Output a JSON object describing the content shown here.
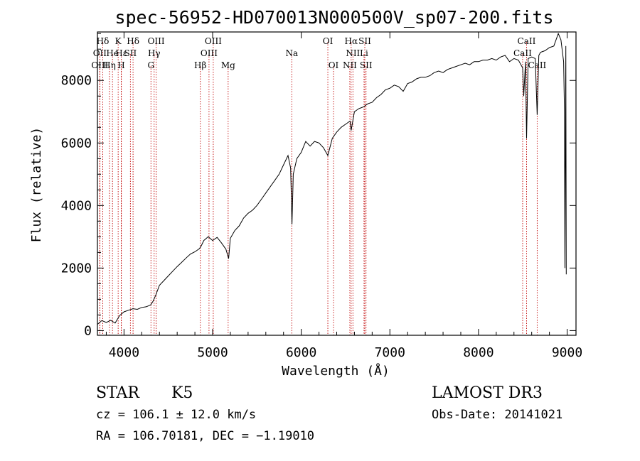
{
  "chart_data": {
    "type": "line",
    "title": "spec-56952-HD070013N000500V_sp07-200.fits",
    "xlabel": "Wavelength (Å)",
    "ylabel": "Flux (relative)",
    "xlim": [
      3700,
      9100
    ],
    "ylim": [
      -150,
      9550
    ],
    "xticks": [
      4000,
      5000,
      6000,
      7000,
      8000,
      9000
    ],
    "xtick_labels": [
      "4000",
      "5000",
      "6000",
      "7000",
      "8000",
      "9000"
    ],
    "yticks": [
      0,
      2000,
      4000,
      6000,
      8000
    ],
    "ytick_labels": [
      "0",
      "2000",
      "4000",
      "6000",
      "8000"
    ],
    "series": [
      {
        "name": "flux",
        "color": "#000000",
        "points": [
          [
            3700,
            200
          ],
          [
            3750,
            320
          ],
          [
            3800,
            260
          ],
          [
            3850,
            330
          ],
          [
            3900,
            240
          ],
          [
            3950,
            480
          ],
          [
            4000,
            600
          ],
          [
            4050,
            650
          ],
          [
            4100,
            700
          ],
          [
            4150,
            680
          ],
          [
            4200,
            740
          ],
          [
            4250,
            760
          ],
          [
            4300,
            820
          ],
          [
            4330,
            950
          ],
          [
            4360,
            1150
          ],
          [
            4400,
            1450
          ],
          [
            4450,
            1600
          ],
          [
            4500,
            1750
          ],
          [
            4550,
            1900
          ],
          [
            4600,
            2050
          ],
          [
            4650,
            2180
          ],
          [
            4700,
            2320
          ],
          [
            4750,
            2450
          ],
          [
            4800,
            2520
          ],
          [
            4850,
            2620
          ],
          [
            4870,
            2700
          ],
          [
            4900,
            2880
          ],
          [
            4950,
            3000
          ],
          [
            5000,
            2880
          ],
          [
            5050,
            2980
          ],
          [
            5100,
            2800
          ],
          [
            5150,
            2600
          ],
          [
            5180,
            2300
          ],
          [
            5200,
            2950
          ],
          [
            5250,
            3200
          ],
          [
            5300,
            3350
          ],
          [
            5350,
            3600
          ],
          [
            5400,
            3750
          ],
          [
            5450,
            3850
          ],
          [
            5500,
            4000
          ],
          [
            5550,
            4200
          ],
          [
            5600,
            4400
          ],
          [
            5650,
            4600
          ],
          [
            5700,
            4800
          ],
          [
            5750,
            5000
          ],
          [
            5800,
            5300
          ],
          [
            5850,
            5600
          ],
          [
            5880,
            5200
          ],
          [
            5895,
            3400
          ],
          [
            5910,
            5000
          ],
          [
            5950,
            5500
          ],
          [
            6000,
            5700
          ],
          [
            6050,
            6050
          ],
          [
            6100,
            5900
          ],
          [
            6150,
            6050
          ],
          [
            6200,
            6000
          ],
          [
            6250,
            5850
          ],
          [
            6300,
            5600
          ],
          [
            6350,
            6150
          ],
          [
            6400,
            6350
          ],
          [
            6450,
            6500
          ],
          [
            6500,
            6600
          ],
          [
            6550,
            6700
          ],
          [
            6563,
            6400
          ],
          [
            6600,
            7000
          ],
          [
            6650,
            7100
          ],
          [
            6700,
            7150
          ],
          [
            6750,
            7250
          ],
          [
            6800,
            7300
          ],
          [
            6850,
            7450
          ],
          [
            6900,
            7550
          ],
          [
            6950,
            7700
          ],
          [
            7000,
            7750
          ],
          [
            7050,
            7850
          ],
          [
            7100,
            7800
          ],
          [
            7150,
            7650
          ],
          [
            7200,
            7900
          ],
          [
            7250,
            7950
          ],
          [
            7300,
            8050
          ],
          [
            7350,
            8100
          ],
          [
            7400,
            8100
          ],
          [
            7450,
            8150
          ],
          [
            7500,
            8250
          ],
          [
            7550,
            8300
          ],
          [
            7600,
            8250
          ],
          [
            7650,
            8350
          ],
          [
            7700,
            8400
          ],
          [
            7750,
            8450
          ],
          [
            7800,
            8500
          ],
          [
            7850,
            8550
          ],
          [
            7900,
            8500
          ],
          [
            7950,
            8600
          ],
          [
            8000,
            8600
          ],
          [
            8050,
            8650
          ],
          [
            8100,
            8650
          ],
          [
            8150,
            8700
          ],
          [
            8200,
            8650
          ],
          [
            8250,
            8750
          ],
          [
            8300,
            8800
          ],
          [
            8350,
            8600
          ],
          [
            8400,
            8700
          ],
          [
            8450,
            8650
          ],
          [
            8498,
            8400
          ],
          [
            8510,
            7500
          ],
          [
            8530,
            8600
          ],
          [
            8542,
            6150
          ],
          [
            8560,
            8700
          ],
          [
            8600,
            8750
          ],
          [
            8640,
            8700
          ],
          [
            8662,
            6900
          ],
          [
            8680,
            8800
          ],
          [
            8700,
            8900
          ],
          [
            8750,
            8950
          ],
          [
            8800,
            9050
          ],
          [
            8850,
            9100
          ],
          [
            8900,
            9500
          ],
          [
            8930,
            9300
          ],
          [
            8960,
            8600
          ],
          [
            8970,
            7000
          ],
          [
            8975,
            2000
          ],
          [
            8985,
            9100
          ],
          [
            8990,
            1800
          ]
        ]
      }
    ],
    "lines": [
      {
        "label": "Hδ",
        "x": 3760,
        "row": 0
      },
      {
        "label": "K",
        "x": 3934,
        "row": 0
      },
      {
        "label": "Hδ",
        "x": 4102,
        "row": 0
      },
      {
        "label": "OIII",
        "x": 4363,
        "row": 0
      },
      {
        "label": "OIII",
        "x": 5007,
        "row": 0
      },
      {
        "label": "OI",
        "x": 6300,
        "row": 0
      },
      {
        "label": "Hα",
        "x": 6563,
        "row": 0
      },
      {
        "label": "SII",
        "x": 6717,
        "row": 0
      },
      {
        "label": "CaII",
        "x": 8542,
        "row": 0
      },
      {
        "label": "OII",
        "x": 3727,
        "row": 1
      },
      {
        "label": "He",
        "x": 3870,
        "row": 1
      },
      {
        "label": "Hε",
        "x": 3970,
        "row": 1
      },
      {
        "label": "SII",
        "x": 4072,
        "row": 1
      },
      {
        "label": "Hγ",
        "x": 4340,
        "row": 1
      },
      {
        "label": "OIII",
        "x": 4959,
        "row": 1
      },
      {
        "label": "Na",
        "x": 5893,
        "row": 1
      },
      {
        "label": "NII",
        "x": 6583,
        "row": 1
      },
      {
        "label": "Li",
        "x": 6708,
        "row": 1
      },
      {
        "label": "CaII",
        "x": 8498,
        "row": 1
      },
      {
        "label": "OIII",
        "x": 3727,
        "row": 2
      },
      {
        "label": "Hη",
        "x": 3836,
        "row": 2
      },
      {
        "label": "H",
        "x": 3969,
        "row": 2
      },
      {
        "label": "G",
        "x": 4304,
        "row": 2
      },
      {
        "label": "Hβ",
        "x": 4861,
        "row": 2
      },
      {
        "label": "Mg",
        "x": 5175,
        "row": 2
      },
      {
        "label": "OI",
        "x": 6364,
        "row": 2
      },
      {
        "label": "NII",
        "x": 6548,
        "row": 2
      },
      {
        "label": "SII",
        "x": 6731,
        "row": 2
      },
      {
        "label": "CaII",
        "x": 8662,
        "row": 2
      }
    ],
    "line_color": "#c00000"
  },
  "info": {
    "class": "STAR",
    "subclass": "K5",
    "survey": "LAMOST DR3",
    "redshift": "cz = 106.1 ± 12.0 km/s",
    "obs_date": "Obs-Date: 20141021",
    "coords": "RA = 106.70181, DEC =  −1.19010"
  }
}
